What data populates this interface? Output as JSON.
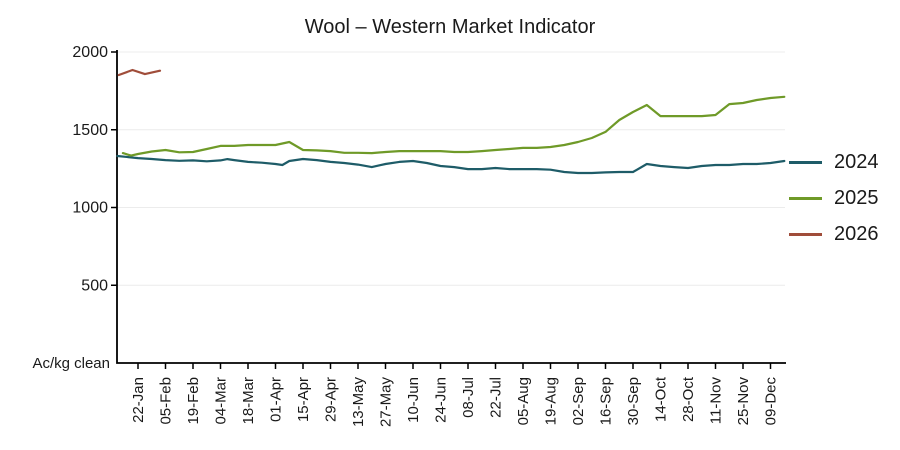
{
  "chart_data": {
    "type": "line",
    "title": "Wool – Western Market Indicator",
    "y_unit_label": "Ac/kg clean",
    "xlabel": "",
    "ylabel": "",
    "ylim": [
      0,
      2000
    ],
    "y_ticks": [
      500,
      1000,
      1500,
      2000
    ],
    "grid": "horizontal",
    "legend_position": "right",
    "x_ticks": [
      {
        "label": "22-Jan",
        "week": 0
      },
      {
        "label": "05-Feb",
        "week": 2
      },
      {
        "label": "19-Feb",
        "week": 4
      },
      {
        "label": "04-Mar",
        "week": 6
      },
      {
        "label": "18-Mar",
        "week": 8
      },
      {
        "label": "01-Apr",
        "week": 10
      },
      {
        "label": "15-Apr",
        "week": 12
      },
      {
        "label": "29-Apr",
        "week": 14
      },
      {
        "label": "13-May",
        "week": 16
      },
      {
        "label": "27-May",
        "week": 18
      },
      {
        "label": "10-Jun",
        "week": 20
      },
      {
        "label": "24-Jun",
        "week": 22
      },
      {
        "label": "08-Jul",
        "week": 24
      },
      {
        "label": "22-Jul",
        "week": 26
      },
      {
        "label": "05-Aug",
        "week": 28
      },
      {
        "label": "19-Aug",
        "week": 30
      },
      {
        "label": "02-Sep",
        "week": 32
      },
      {
        "label": "16-Sep",
        "week": 34
      },
      {
        "label": "30-Sep",
        "week": 36
      },
      {
        "label": "14-Oct",
        "week": 38
      },
      {
        "label": "28-Oct",
        "week": 40
      },
      {
        "label": "11-Nov",
        "week": 42
      },
      {
        "label": "25-Nov",
        "week": 44
      },
      {
        "label": "09-Dec",
        "week": 46
      }
    ],
    "series": [
      {
        "name": "2024",
        "color": "#1e5c68",
        "points": [
          [
            -1.5,
            1331
          ],
          [
            0,
            1318
          ],
          [
            1,
            1312
          ],
          [
            2,
            1305
          ],
          [
            3,
            1300
          ],
          [
            4,
            1303
          ],
          [
            5,
            1297
          ],
          [
            6,
            1303
          ],
          [
            6.5,
            1311
          ],
          [
            7,
            1305
          ],
          [
            8,
            1293
          ],
          [
            9,
            1288
          ],
          [
            10,
            1280
          ],
          [
            10.5,
            1273
          ],
          [
            11,
            1299
          ],
          [
            12,
            1312
          ],
          [
            13,
            1305
          ],
          [
            14,
            1293
          ],
          [
            15,
            1286
          ],
          [
            16,
            1276
          ],
          [
            17,
            1260
          ],
          [
            18,
            1280
          ],
          [
            19,
            1293
          ],
          [
            20,
            1299
          ],
          [
            21,
            1286
          ],
          [
            22,
            1267
          ],
          [
            23,
            1260
          ],
          [
            24,
            1247
          ],
          [
            25,
            1247
          ],
          [
            26,
            1254
          ],
          [
            27,
            1247
          ],
          [
            28,
            1247
          ],
          [
            29,
            1247
          ],
          [
            30,
            1243
          ],
          [
            31,
            1228
          ],
          [
            32,
            1222
          ],
          [
            33,
            1222
          ],
          [
            34,
            1226
          ],
          [
            35,
            1228
          ],
          [
            36,
            1228
          ],
          [
            37,
            1280
          ],
          [
            38,
            1267
          ],
          [
            39,
            1260
          ],
          [
            40,
            1254
          ],
          [
            41,
            1267
          ],
          [
            42,
            1273
          ],
          [
            43,
            1273
          ],
          [
            44,
            1280
          ],
          [
            45,
            1280
          ],
          [
            46,
            1286
          ],
          [
            47,
            1299
          ]
        ]
      },
      {
        "name": "2025",
        "color": "#6f9a28",
        "points": [
          [
            -1.1,
            1350
          ],
          [
            -0.5,
            1334
          ],
          [
            0,
            1344
          ],
          [
            1,
            1360
          ],
          [
            2,
            1370
          ],
          [
            3,
            1355
          ],
          [
            4,
            1357
          ],
          [
            5,
            1376
          ],
          [
            6,
            1396
          ],
          [
            7,
            1396
          ],
          [
            8,
            1402
          ],
          [
            9,
            1402
          ],
          [
            10,
            1402
          ],
          [
            11,
            1421
          ],
          [
            12,
            1370
          ],
          [
            13,
            1367
          ],
          [
            14,
            1363
          ],
          [
            15,
            1352
          ],
          [
            16,
            1352
          ],
          [
            17,
            1350
          ],
          [
            18,
            1357
          ],
          [
            19,
            1363
          ],
          [
            20,
            1363
          ],
          [
            21,
            1363
          ],
          [
            22,
            1363
          ],
          [
            23,
            1357
          ],
          [
            24,
            1357
          ],
          [
            25,
            1363
          ],
          [
            26,
            1370
          ],
          [
            27,
            1376
          ],
          [
            28,
            1383
          ],
          [
            29,
            1383
          ],
          [
            30,
            1389
          ],
          [
            31,
            1402
          ],
          [
            32,
            1421
          ],
          [
            33,
            1447
          ],
          [
            34,
            1486
          ],
          [
            35,
            1563
          ],
          [
            36,
            1614
          ],
          [
            37,
            1659
          ],
          [
            38,
            1588
          ],
          [
            39,
            1588
          ],
          [
            40,
            1588
          ],
          [
            41,
            1588
          ],
          [
            42,
            1595
          ],
          [
            43,
            1665
          ],
          [
            44,
            1672
          ],
          [
            45,
            1691
          ],
          [
            46,
            1704
          ],
          [
            47,
            1712
          ]
        ]
      },
      {
        "name": "2026",
        "color": "#a04d3a",
        "points": [
          [
            -1.4,
            1852
          ],
          [
            -0.4,
            1884
          ],
          [
            0.5,
            1858
          ],
          [
            1.6,
            1880
          ]
        ]
      }
    ],
    "colors": {
      "axis": "#000000",
      "tick_label": "#1a1a1a",
      "gridline": "#ececec"
    }
  }
}
